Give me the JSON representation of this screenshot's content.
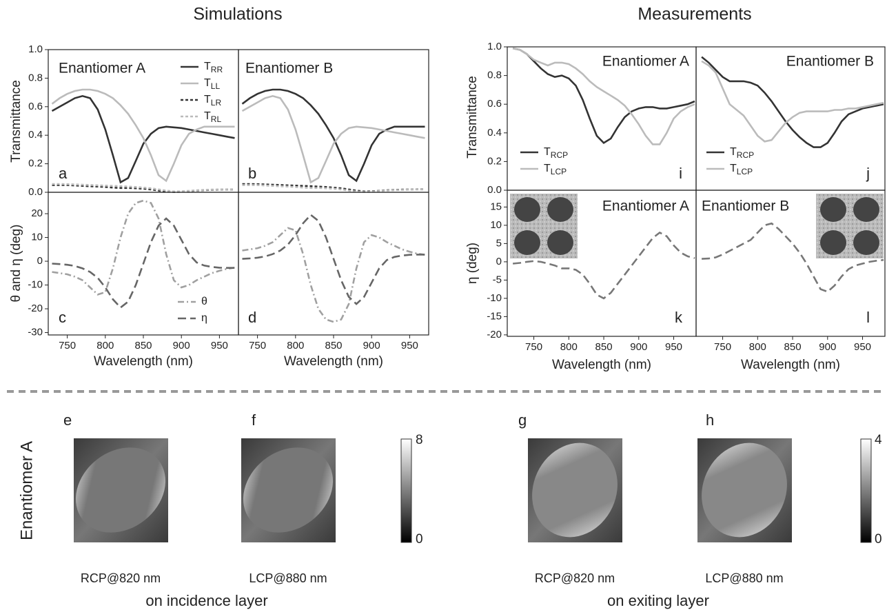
{
  "headers": [
    "Simulations",
    "Measurements"
  ],
  "chart_data": [
    {
      "type": "line",
      "panel_label": "a",
      "annotation": "Enantiomer A",
      "ylabel": "Transmittance",
      "legend": "upper right",
      "xlim": [
        725,
        975
      ],
      "ylim": [
        0,
        1
      ],
      "yticks": [
        {
          "value": 0,
          "label": "0.0"
        },
        0.2,
        0.4,
        0.6,
        0.8,
        {
          "value": 1,
          "label": "1.0"
        }
      ],
      "x": [
        730,
        740,
        750,
        760,
        770,
        780,
        790,
        800,
        810,
        820,
        830,
        840,
        850,
        860,
        870,
        880,
        890,
        900,
        910,
        920,
        930,
        940,
        950,
        960,
        970
      ],
      "series": [
        {
          "name": "TRR",
          "color": "#333333",
          "style": "solid",
          "values": [
            0.57,
            0.6,
            0.63,
            0.66,
            0.675,
            0.66,
            0.58,
            0.44,
            0.26,
            0.07,
            0.1,
            0.22,
            0.34,
            0.41,
            0.45,
            0.46,
            0.455,
            0.45,
            0.44,
            0.43,
            0.42,
            0.41,
            0.4,
            0.39,
            0.38
          ]
        },
        {
          "name": "TLL",
          "color": "#bbbbbb",
          "style": "solid",
          "values": [
            0.62,
            0.66,
            0.69,
            0.71,
            0.72,
            0.72,
            0.71,
            0.69,
            0.66,
            0.61,
            0.55,
            0.47,
            0.38,
            0.26,
            0.12,
            0.08,
            0.2,
            0.33,
            0.41,
            0.44,
            0.46,
            0.46,
            0.46,
            0.46,
            0.46
          ]
        },
        {
          "name": "TLR",
          "color": "#333333",
          "style": "short-dash",
          "values": [
            0.05,
            0.05,
            0.05,
            0.048,
            0.045,
            0.042,
            0.04,
            0.037,
            0.033,
            0.03,
            0.03,
            0.028,
            0.025,
            0.02,
            0.012,
            0.005,
            0.002,
            0.004,
            0.008,
            0.012,
            0.015,
            0.017,
            0.019,
            0.02,
            0.02
          ]
        },
        {
          "name": "TRL",
          "color": "#bbbbbb",
          "style": "short-dash",
          "values": [
            0.058,
            0.058,
            0.057,
            0.055,
            0.053,
            0.051,
            0.049,
            0.047,
            0.045,
            0.043,
            0.04,
            0.037,
            0.033,
            0.028,
            0.02,
            0.012,
            0.006,
            0.007,
            0.01,
            0.014,
            0.017,
            0.019,
            0.02,
            0.021,
            0.021
          ]
        }
      ]
    },
    {
      "type": "line",
      "panel_label": "b",
      "annotation": "Enantiomer B",
      "xlim": [
        725,
        975
      ],
      "ylim": [
        0,
        1
      ],
      "x": [
        730,
        740,
        750,
        760,
        770,
        780,
        790,
        800,
        810,
        820,
        830,
        840,
        850,
        860,
        870,
        880,
        890,
        900,
        910,
        920,
        930,
        940,
        950,
        960,
        970
      ],
      "series": [
        {
          "color": "#333333",
          "style": "solid",
          "values": [
            0.62,
            0.66,
            0.69,
            0.71,
            0.72,
            0.72,
            0.71,
            0.69,
            0.66,
            0.61,
            0.55,
            0.47,
            0.38,
            0.26,
            0.12,
            0.08,
            0.2,
            0.33,
            0.41,
            0.44,
            0.46,
            0.46,
            0.46,
            0.46,
            0.46
          ]
        },
        {
          "color": "#bbbbbb",
          "style": "solid",
          "values": [
            0.57,
            0.6,
            0.63,
            0.66,
            0.675,
            0.66,
            0.58,
            0.44,
            0.26,
            0.07,
            0.1,
            0.22,
            0.34,
            0.41,
            0.45,
            0.46,
            0.455,
            0.45,
            0.44,
            0.43,
            0.42,
            0.41,
            0.4,
            0.39,
            0.38
          ]
        },
        {
          "color": "#333333",
          "style": "short-dash",
          "values": [
            0.058,
            0.058,
            0.057,
            0.055,
            0.053,
            0.051,
            0.049,
            0.047,
            0.045,
            0.043,
            0.04,
            0.037,
            0.033,
            0.028,
            0.02,
            0.012,
            0.006,
            0.007,
            0.01,
            0.014,
            0.017,
            0.019,
            0.02,
            0.021,
            0.021
          ]
        },
        {
          "color": "#bbbbbb",
          "style": "short-dash",
          "values": [
            0.05,
            0.05,
            0.05,
            0.048,
            0.045,
            0.042,
            0.04,
            0.037,
            0.033,
            0.03,
            0.03,
            0.028,
            0.025,
            0.02,
            0.012,
            0.005,
            0.002,
            0.004,
            0.008,
            0.012,
            0.015,
            0.017,
            0.019,
            0.02,
            0.02
          ]
        }
      ]
    },
    {
      "type": "line",
      "panel_label": "c",
      "ylabel": "θ and η (deg)",
      "xlabel": "Wavelength (nm)",
      "legend": "lower right",
      "xlim": [
        725,
        975
      ],
      "ylim": [
        -31,
        29
      ],
      "xticks": [
        750,
        800,
        850,
        900,
        950
      ],
      "yticks": [
        -30,
        -20,
        -10,
        0,
        10,
        20
      ],
      "x": [
        730,
        740,
        750,
        760,
        770,
        780,
        790,
        800,
        810,
        820,
        830,
        840,
        850,
        860,
        870,
        880,
        890,
        900,
        910,
        920,
        930,
        940,
        950,
        960,
        970
      ],
      "series": [
        {
          "name": "θ",
          "color": "#a0a0a0",
          "style": "dash-dot",
          "values": [
            -4.5,
            -5,
            -5.5,
            -6.5,
            -8,
            -11,
            -14,
            -13,
            -3,
            10,
            20,
            24.5,
            25.5,
            24.5,
            18,
            3,
            -8,
            -11,
            -10,
            -8,
            -6.5,
            -5,
            -4,
            -3.2,
            -2.7
          ]
        },
        {
          "name": "η",
          "color": "#666666",
          "style": "dashed",
          "values": [
            -1,
            -1.2,
            -1.5,
            -2,
            -3,
            -4.5,
            -7,
            -11,
            -16,
            -19.5,
            -17,
            -10,
            -1,
            8,
            15,
            18,
            15,
            9,
            3,
            -0.5,
            -1.8,
            -2.4,
            -2.7,
            -2.8,
            -2.8
          ]
        }
      ]
    },
    {
      "type": "line",
      "panel_label": "d",
      "xlabel": "Wavelength (nm)",
      "xlim": [
        725,
        975
      ],
      "ylim": [
        -31,
        29
      ],
      "xticks": [
        750,
        800,
        850,
        900,
        950
      ],
      "x": [
        730,
        740,
        750,
        760,
        770,
        780,
        790,
        800,
        810,
        820,
        830,
        840,
        850,
        860,
        870,
        880,
        890,
        900,
        910,
        920,
        930,
        940,
        950,
        960,
        970
      ],
      "series": [
        {
          "color": "#a0a0a0",
          "style": "dash-dot",
          "values": [
            4.5,
            5,
            5.5,
            6.5,
            8,
            11,
            14,
            13,
            3,
            -10,
            -20,
            -24.5,
            -25.5,
            -24.5,
            -18,
            -3,
            8,
            11,
            10,
            8,
            6.5,
            5,
            4,
            3.2,
            2.7
          ]
        },
        {
          "color": "#666666",
          "style": "dashed",
          "values": [
            1,
            1.2,
            1.5,
            2,
            3,
            4.5,
            7,
            11,
            16,
            19.5,
            17,
            10,
            1,
            -8,
            -15,
            -18,
            -15,
            -9,
            -3,
            0.5,
            1.8,
            2.4,
            2.7,
            2.8,
            2.8
          ]
        }
      ]
    },
    {
      "type": "line",
      "panel_label": "i",
      "annotation": "Enantiomer A",
      "ylabel": "Transmittance",
      "legend": "lower left",
      "xlim": [
        712,
        982
      ],
      "ylim": [
        0,
        1
      ],
      "yticks": [
        {
          "value": 0,
          "label": "0.0"
        },
        0.2,
        0.4,
        0.6,
        0.8,
        {
          "value": 1,
          "label": "1.0"
        }
      ],
      "x": [
        720,
        730,
        740,
        750,
        760,
        770,
        780,
        790,
        800,
        810,
        820,
        830,
        840,
        850,
        860,
        870,
        880,
        890,
        900,
        910,
        920,
        930,
        940,
        950,
        960,
        970,
        980
      ],
      "series": [
        {
          "name": "TRCP",
          "color": "#333333",
          "style": "solid",
          "values": [
            0.99,
            0.98,
            0.95,
            0.9,
            0.85,
            0.81,
            0.79,
            0.8,
            0.78,
            0.73,
            0.63,
            0.5,
            0.38,
            0.33,
            0.36,
            0.44,
            0.51,
            0.55,
            0.57,
            0.58,
            0.58,
            0.57,
            0.57,
            0.58,
            0.59,
            0.6,
            0.62
          ]
        },
        {
          "name": "TLCP",
          "color": "#bbbbbb",
          "style": "solid",
          "values": [
            0.99,
            0.98,
            0.95,
            0.91,
            0.89,
            0.87,
            0.89,
            0.89,
            0.88,
            0.85,
            0.81,
            0.76,
            0.72,
            0.69,
            0.66,
            0.63,
            0.59,
            0.53,
            0.46,
            0.38,
            0.32,
            0.32,
            0.4,
            0.5,
            0.55,
            0.58,
            0.6
          ]
        }
      ]
    },
    {
      "type": "line",
      "panel_label": "j",
      "annotation": "Enantiomer B",
      "legend": "lower left",
      "xlim": [
        712,
        982
      ],
      "ylim": [
        0,
        1
      ],
      "x": [
        720,
        730,
        740,
        750,
        760,
        770,
        780,
        790,
        800,
        810,
        820,
        830,
        840,
        850,
        860,
        870,
        880,
        890,
        900,
        910,
        920,
        930,
        940,
        950,
        960,
        970,
        980
      ],
      "series": [
        {
          "name": "TRCP",
          "color": "#333333",
          "style": "solid",
          "values": [
            0.93,
            0.89,
            0.84,
            0.79,
            0.76,
            0.76,
            0.76,
            0.75,
            0.73,
            0.68,
            0.62,
            0.55,
            0.48,
            0.42,
            0.37,
            0.33,
            0.3,
            0.3,
            0.33,
            0.4,
            0.48,
            0.53,
            0.55,
            0.57,
            0.58,
            0.59,
            0.6
          ]
        },
        {
          "name": "TLCP",
          "color": "#bbbbbb",
          "style": "solid",
          "values": [
            0.9,
            0.87,
            0.82,
            0.71,
            0.6,
            0.56,
            0.52,
            0.45,
            0.38,
            0.34,
            0.35,
            0.41,
            0.47,
            0.51,
            0.54,
            0.55,
            0.55,
            0.55,
            0.55,
            0.56,
            0.56,
            0.57,
            0.57,
            0.58,
            0.59,
            0.6,
            0.61
          ]
        }
      ]
    },
    {
      "type": "line",
      "panel_label": "k",
      "annotation": "Enantiomer A",
      "ylabel": "η (deg)",
      "xlabel": "Wavelength (nm)",
      "xlim": [
        712,
        982
      ],
      "ylim": [
        -20.4,
        19.6
      ],
      "xticks": [
        750,
        800,
        850,
        900,
        950
      ],
      "yticks": [
        -20,
        -15,
        -10,
        -5,
        0,
        5,
        10,
        15
      ],
      "x": [
        720,
        730,
        740,
        750,
        760,
        770,
        780,
        790,
        800,
        810,
        820,
        830,
        840,
        850,
        860,
        870,
        880,
        890,
        900,
        910,
        920,
        930,
        940,
        950,
        960,
        970,
        980
      ],
      "series": [
        {
          "color": "#777777",
          "style": "dashed",
          "values": [
            -0.5,
            -0.3,
            0,
            0.2,
            0,
            -0.5,
            -1,
            -1.8,
            -1.8,
            -2.2,
            -3.5,
            -6,
            -9,
            -10,
            -8.5,
            -6,
            -3.5,
            -1,
            1.5,
            4,
            6.5,
            8,
            7,
            4.5,
            2.5,
            1.5,
            1
          ]
        }
      ]
    },
    {
      "type": "line",
      "panel_label": "l",
      "annotation": "Enantiomer B",
      "xlabel": "Wavelength (nm)",
      "xlim": [
        712,
        982
      ],
      "ylim": [
        -20.4,
        19.6
      ],
      "xticks": [
        750,
        800,
        850,
        900,
        950
      ],
      "x": [
        720,
        730,
        740,
        750,
        760,
        770,
        780,
        790,
        800,
        810,
        820,
        830,
        840,
        850,
        860,
        870,
        880,
        890,
        900,
        910,
        920,
        930,
        940,
        950,
        960,
        970,
        980
      ],
      "series": [
        {
          "color": "#777777",
          "style": "dashed",
          "values": [
            0.8,
            0.9,
            1.2,
            2,
            3,
            4,
            5,
            6,
            8,
            10,
            10.5,
            9,
            7,
            5,
            2.5,
            -0.5,
            -4,
            -7.5,
            -8.2,
            -6.5,
            -4,
            -2,
            -1,
            -0.5,
            0,
            0.3,
            0.5
          ]
        }
      ]
    }
  ],
  "field_maps": {
    "row_label": "Enantiomer A",
    "panels": [
      {
        "label": "e",
        "caption": "RCP@820 nm"
      },
      {
        "label": "f",
        "caption": "LCP@880 nm"
      },
      {
        "label": "g",
        "caption": "RCP@820 nm"
      },
      {
        "label": "h",
        "caption": "LCP@880 nm"
      }
    ],
    "groups": [
      "on incidence layer",
      "on exiting layer"
    ],
    "colorbars": [
      {
        "max": 8,
        "min": 0
      },
      {
        "max": 4,
        "min": 0
      }
    ]
  }
}
